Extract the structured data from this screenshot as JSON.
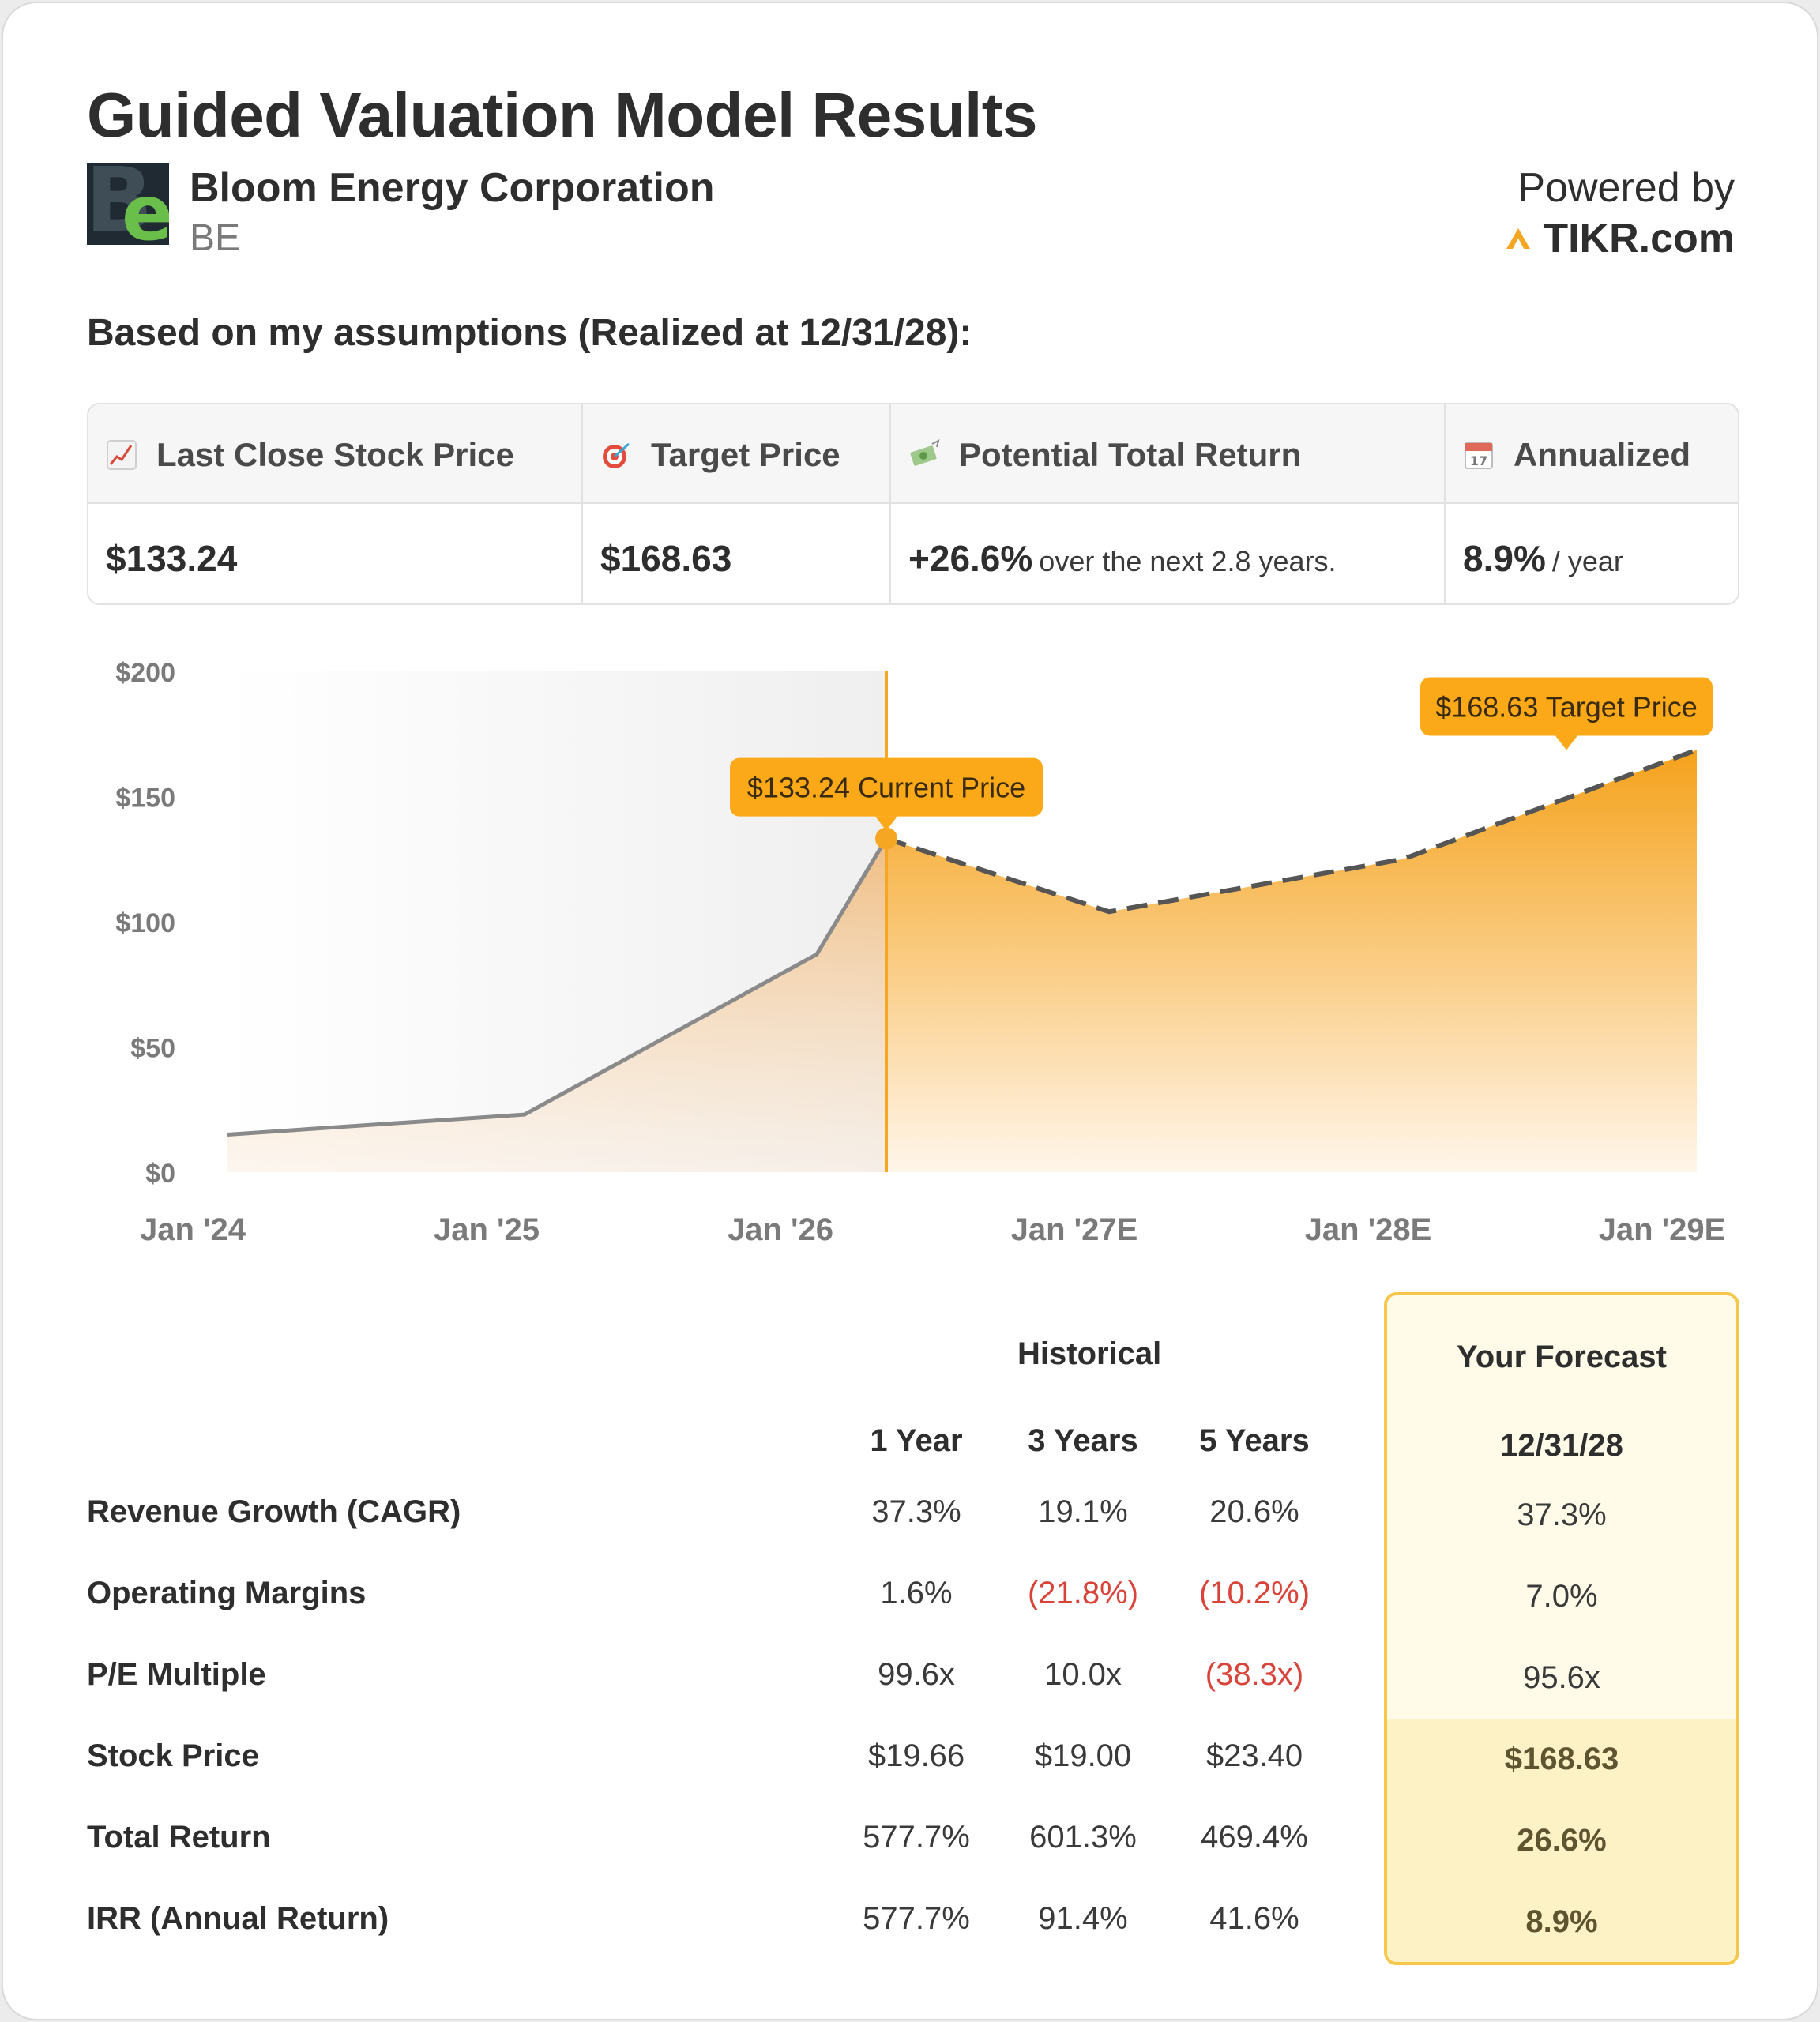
{
  "header": {
    "title": "Guided Valuation Model Results",
    "company": "Bloom Energy Corporation",
    "ticker": "BE",
    "logo_text": "Be",
    "powered_by": "Powered by",
    "brand": "TIKR.com",
    "assumptions": "Based on my assumptions (Realized at 12/31/28):"
  },
  "summary": [
    {
      "icon": "chart-up-icon",
      "label": "Last Close Stock Price",
      "value": "$133.24",
      "suffix": ""
    },
    {
      "icon": "target-icon",
      "label": "Target Price",
      "value": "$168.63",
      "suffix": ""
    },
    {
      "icon": "money-icon",
      "label": "Potential Total Return",
      "value": "+26.6%",
      "suffix": "over the next 2.8 years."
    },
    {
      "icon": "calendar-icon",
      "label": "Annualized",
      "value": "8.9%",
      "suffix": "/ year"
    }
  ],
  "chart_data": {
    "type": "area",
    "y_ticks": [
      "$200",
      "$150",
      "$100",
      "$50",
      "$0"
    ],
    "x_ticks": [
      "Jan '24",
      "Jan '25",
      "Jan '26",
      "Jan '27E",
      "Jan '28E",
      "Jan '29E"
    ],
    "ylim": [
      0,
      200
    ],
    "historical": [
      {
        "x": "Jan '24",
        "y": 15
      },
      {
        "x": "Jan '25",
        "y": 23
      },
      {
        "x": "Jan '26",
        "y": 87
      },
      {
        "x": "Current",
        "y": 133.24
      }
    ],
    "forecast": [
      {
        "x": "Current",
        "y": 133.24
      },
      {
        "x": "Jan '27E",
        "y": 104
      },
      {
        "x": "Jan '28E",
        "y": 125
      },
      {
        "x": "Dec '28E",
        "y": 168.63
      }
    ],
    "current_label": "$133.24 Current Price",
    "target_label": "$168.63 Target Price",
    "colors": {
      "accent": "#f5a623",
      "history_line": "#8a8a8a",
      "forecast_line": "#555555"
    }
  },
  "table": {
    "historical_label": "Historical",
    "forecast_label": "Your Forecast",
    "forecast_date": "12/31/28",
    "columns": [
      "1 Year",
      "3 Years",
      "5 Years"
    ],
    "rows": [
      {
        "label": "Revenue Growth (CAGR)",
        "values": [
          "37.3%",
          "19.1%",
          "20.6%"
        ],
        "neg": [
          false,
          false,
          false
        ],
        "forecast": "37.3%"
      },
      {
        "label": "Operating Margins",
        "values": [
          "1.6%",
          "(21.8%)",
          "(10.2%)"
        ],
        "neg": [
          false,
          true,
          true
        ],
        "forecast": "7.0%"
      },
      {
        "label": "P/E Multiple",
        "values": [
          "99.6x",
          "10.0x",
          "(38.3x)"
        ],
        "neg": [
          false,
          false,
          true
        ],
        "forecast": "95.6x"
      },
      {
        "label": "Stock Price",
        "values": [
          "$19.66",
          "$19.00",
          "$23.40"
        ],
        "neg": [
          false,
          false,
          false
        ],
        "forecast": "$168.63"
      },
      {
        "label": "Total Return",
        "values": [
          "577.7%",
          "601.3%",
          "469.4%"
        ],
        "neg": [
          false,
          false,
          false
        ],
        "forecast": "26.6%"
      },
      {
        "label": "IRR (Annual Return)",
        "values": [
          "577.7%",
          "91.4%",
          "41.6%"
        ],
        "neg": [
          false,
          false,
          false
        ],
        "forecast": "8.9%"
      }
    ]
  }
}
